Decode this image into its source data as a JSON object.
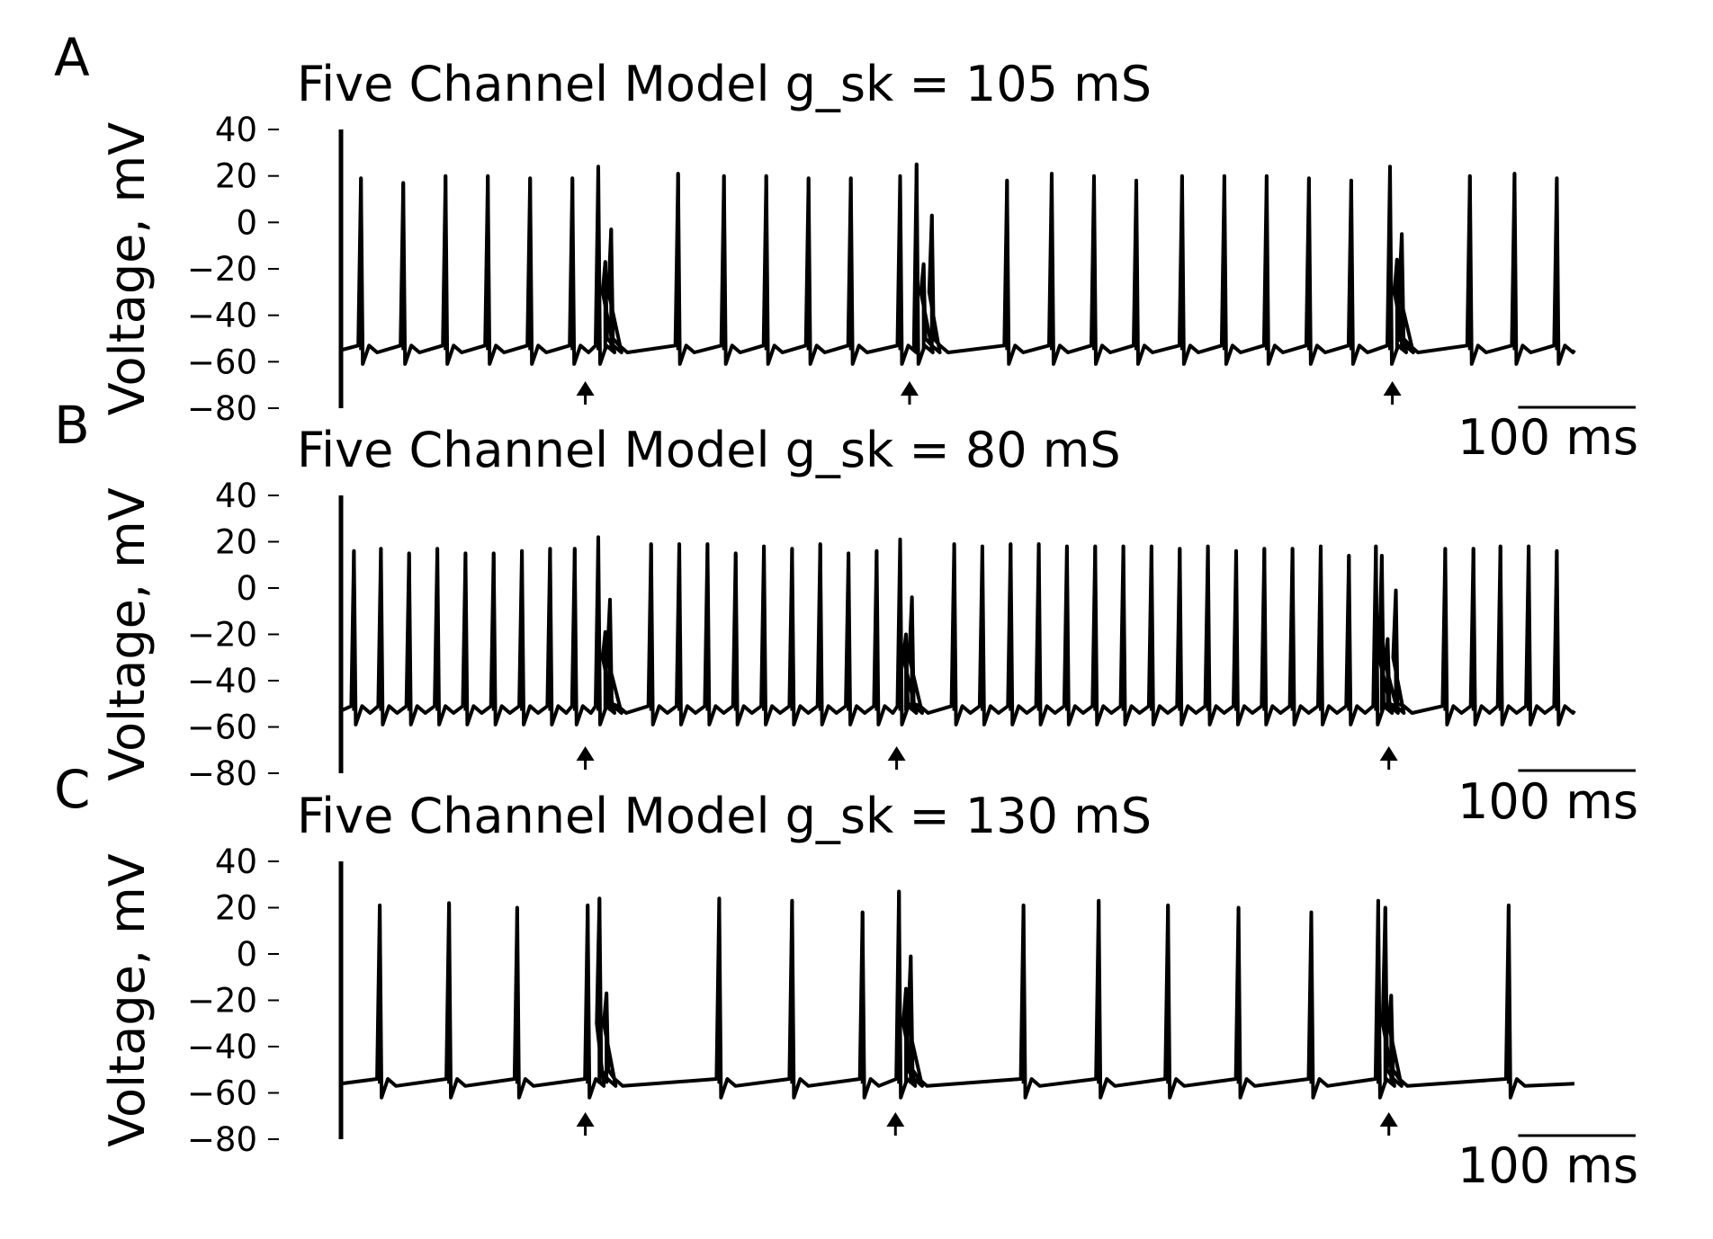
{
  "figure": {
    "line_color": "#000000",
    "background": "#ffffff"
  },
  "chart_data": [
    {
      "type": "line",
      "panel_letter": "A",
      "title": "Five Channel Model g_sk = 105 mS",
      "ylabel": "Voltage, mV",
      "ylim": [
        -80,
        40
      ],
      "yticks": [
        40,
        20,
        0,
        -20,
        -40,
        -60,
        -80
      ],
      "ytick_labels": [
        "40",
        "20",
        "0",
        "−20",
        "−40",
        "−60",
        "−80"
      ],
      "xlim_ms": [
        0,
        1050
      ],
      "scale_bar": {
        "label": "100 ms",
        "length_ms": 100
      },
      "baseline_mV": -55,
      "spikes": [
        {
          "t": 17,
          "peak": 19
        },
        {
          "t": 53,
          "peak": 17
        },
        {
          "t": 89,
          "peak": 20
        },
        {
          "t": 125,
          "peak": 20
        },
        {
          "t": 161,
          "peak": 19
        },
        {
          "t": 197,
          "peak": 19
        },
        {
          "t": 219,
          "peak": 24
        },
        {
          "t": 225,
          "peak": -17
        },
        {
          "t": 230,
          "peak": -3
        },
        {
          "t": 287,
          "peak": 21
        },
        {
          "t": 326,
          "peak": 20
        },
        {
          "t": 362,
          "peak": 20
        },
        {
          "t": 398,
          "peak": 19
        },
        {
          "t": 434,
          "peak": 19
        },
        {
          "t": 476,
          "peak": 20
        },
        {
          "t": 490,
          "peak": 25
        },
        {
          "t": 496,
          "peak": -18
        },
        {
          "t": 503,
          "peak": 3
        },
        {
          "t": 567,
          "peak": 18
        },
        {
          "t": 605,
          "peak": 21
        },
        {
          "t": 641,
          "peak": 20
        },
        {
          "t": 677,
          "peak": 18
        },
        {
          "t": 716,
          "peak": 20
        },
        {
          "t": 752,
          "peak": 20
        },
        {
          "t": 788,
          "peak": 20
        },
        {
          "t": 824,
          "peak": 19
        },
        {
          "t": 860,
          "peak": 18
        },
        {
          "t": 893,
          "peak": 24
        },
        {
          "t": 899,
          "peak": -16
        },
        {
          "t": 903,
          "peak": -5
        },
        {
          "t": 961,
          "peak": 20
        },
        {
          "t": 999,
          "peak": 21
        },
        {
          "t": 1035,
          "peak": 19
        }
      ],
      "stimulus_markers_ms": [
        208,
        484,
        895
      ]
    },
    {
      "type": "line",
      "panel_letter": "B",
      "title": "Five Channel Model g_sk = 80 mS",
      "ylabel": "Voltage, mV",
      "ylim": [
        -80,
        40
      ],
      "yticks": [
        40,
        20,
        0,
        -20,
        -40,
        -60,
        -80
      ],
      "ytick_labels": [
        "40",
        "20",
        "0",
        "−20",
        "−40",
        "−60",
        "−80"
      ],
      "xlim_ms": [
        0,
        1050
      ],
      "scale_bar": {
        "label": "100 ms",
        "length_ms": 100
      },
      "baseline_mV": -53,
      "spikes": [
        {
          "t": 11,
          "peak": 16
        },
        {
          "t": 34,
          "peak": 17
        },
        {
          "t": 58,
          "peak": 15
        },
        {
          "t": 82,
          "peak": 17
        },
        {
          "t": 106,
          "peak": 15
        },
        {
          "t": 130,
          "peak": 15
        },
        {
          "t": 154,
          "peak": 16
        },
        {
          "t": 178,
          "peak": 17
        },
        {
          "t": 199,
          "peak": 17
        },
        {
          "t": 219,
          "peak": 22
        },
        {
          "t": 225,
          "peak": -19
        },
        {
          "t": 229,
          "peak": -5
        },
        {
          "t": 264,
          "peak": 19
        },
        {
          "t": 288,
          "peak": 19
        },
        {
          "t": 312,
          "peak": 19
        },
        {
          "t": 336,
          "peak": 15
        },
        {
          "t": 360,
          "peak": 18
        },
        {
          "t": 384,
          "peak": 17
        },
        {
          "t": 408,
          "peak": 19
        },
        {
          "t": 432,
          "peak": 15
        },
        {
          "t": 456,
          "peak": 16
        },
        {
          "t": 476,
          "peak": 21
        },
        {
          "t": 481,
          "peak": -20
        },
        {
          "t": 486,
          "peak": -4
        },
        {
          "t": 522,
          "peak": 19
        },
        {
          "t": 546,
          "peak": 18
        },
        {
          "t": 570,
          "peak": 19
        },
        {
          "t": 594,
          "peak": 19
        },
        {
          "t": 618,
          "peak": 18
        },
        {
          "t": 642,
          "peak": 18
        },
        {
          "t": 666,
          "peak": 18
        },
        {
          "t": 690,
          "peak": 18
        },
        {
          "t": 714,
          "peak": 17
        },
        {
          "t": 738,
          "peak": 18
        },
        {
          "t": 762,
          "peak": 16
        },
        {
          "t": 786,
          "peak": 17
        },
        {
          "t": 810,
          "peak": 17
        },
        {
          "t": 834,
          "peak": 18
        },
        {
          "t": 858,
          "peak": 14
        },
        {
          "t": 881,
          "peak": 18
        },
        {
          "t": 886,
          "peak": 14
        },
        {
          "t": 891,
          "peak": -22
        },
        {
          "t": 898,
          "peak": -1
        },
        {
          "t": 940,
          "peak": 17
        },
        {
          "t": 964,
          "peak": 17
        },
        {
          "t": 987,
          "peak": 18
        },
        {
          "t": 1011,
          "peak": 18
        },
        {
          "t": 1035,
          "peak": 16
        }
      ],
      "stimulus_markers_ms": [
        208,
        473,
        892
      ]
    },
    {
      "type": "line",
      "panel_letter": "C",
      "title": "Five Channel Model g_sk = 130 mS",
      "ylabel": "Voltage, mV",
      "ylim": [
        -80,
        40
      ],
      "yticks": [
        40,
        20,
        0,
        -20,
        -40,
        -60,
        -80
      ],
      "ytick_labels": [
        "40",
        "20",
        "0",
        "−20",
        "−40",
        "−60",
        "−80"
      ],
      "xlim_ms": [
        0,
        1050
      ],
      "scale_bar": {
        "label": "100 ms",
        "length_ms": 100
      },
      "baseline_mV": -56,
      "spikes": [
        {
          "t": 33,
          "peak": 21
        },
        {
          "t": 92,
          "peak": 22
        },
        {
          "t": 150,
          "peak": 20
        },
        {
          "t": 210,
          "peak": 21
        },
        {
          "t": 220,
          "peak": 24
        },
        {
          "t": 226,
          "peak": -17
        },
        {
          "t": 322,
          "peak": 24
        },
        {
          "t": 384,
          "peak": 23
        },
        {
          "t": 444,
          "peak": 18
        },
        {
          "t": 475,
          "peak": 27
        },
        {
          "t": 481,
          "peak": -15
        },
        {
          "t": 485,
          "peak": -1
        },
        {
          "t": 581,
          "peak": 21
        },
        {
          "t": 645,
          "peak": 23
        },
        {
          "t": 704,
          "peak": 21
        },
        {
          "t": 764,
          "peak": 20
        },
        {
          "t": 826,
          "peak": 18
        },
        {
          "t": 883,
          "peak": 23
        },
        {
          "t": 889,
          "peak": 20
        },
        {
          "t": 894,
          "peak": -18
        },
        {
          "t": 994,
          "peak": 21
        }
      ],
      "stimulus_markers_ms": [
        208,
        472,
        892
      ]
    }
  ]
}
